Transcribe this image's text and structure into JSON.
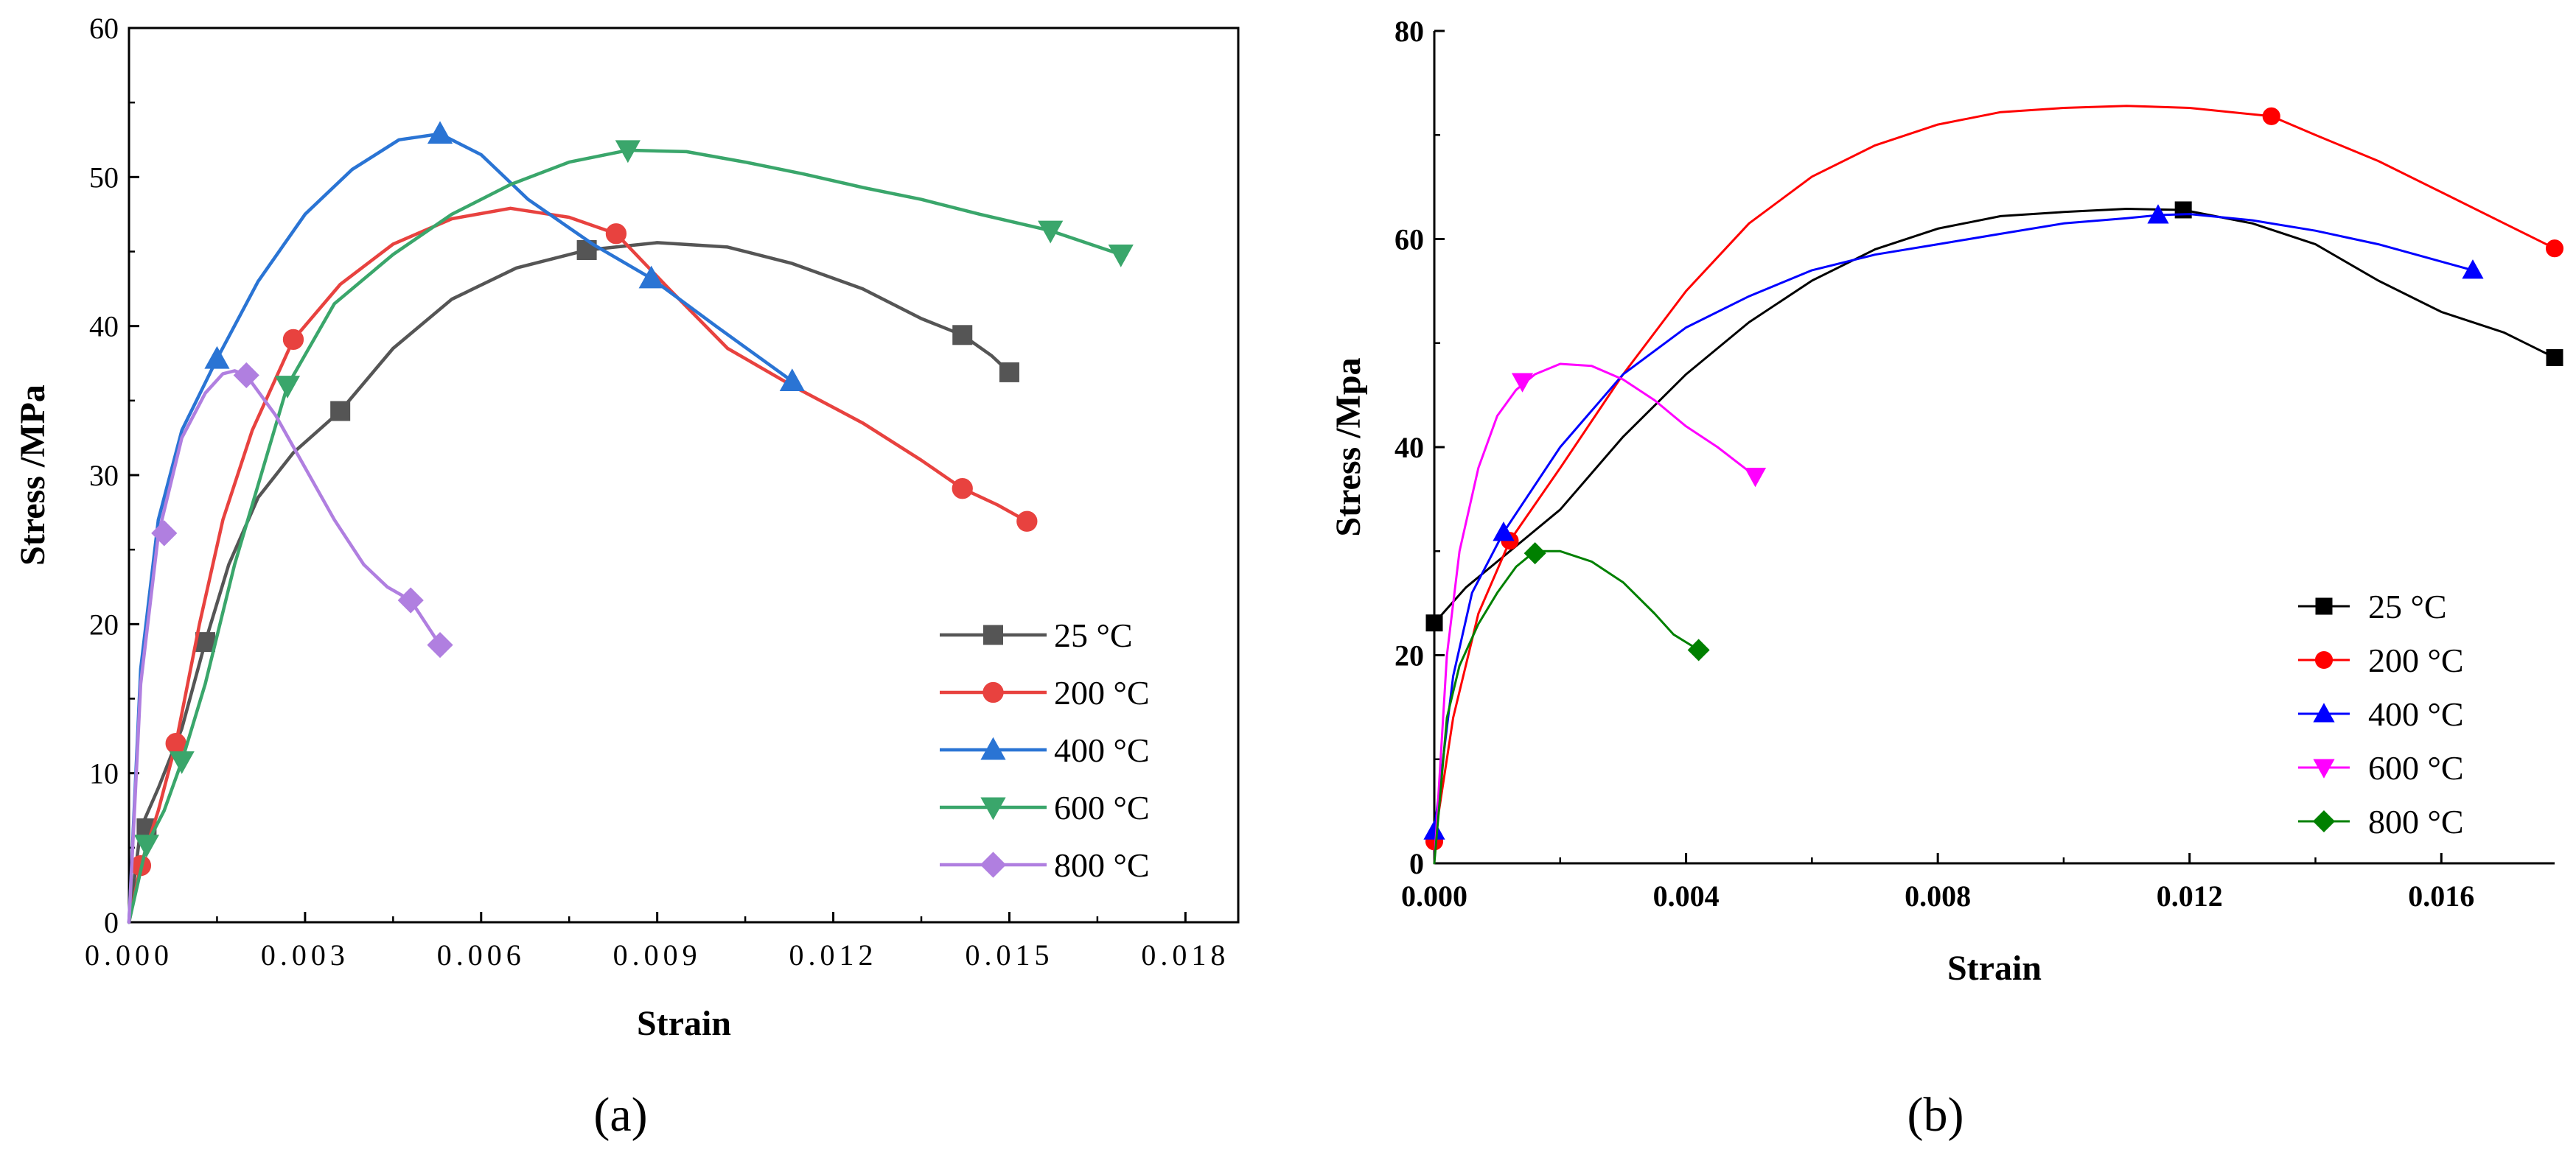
{
  "chart_data": [
    {
      "type": "line",
      "caption": "(a)",
      "xlabel": "Strain",
      "ylabel": "Stress /MPa",
      "xlim": [
        0,
        0.0189
      ],
      "ylim": [
        0,
        60
      ],
      "xticks": [
        0,
        0.003,
        0.006,
        0.009,
        0.012,
        0.015,
        0.018
      ],
      "xtick_labels": [
        "0.000",
        "0.003",
        "0.006",
        "0.009",
        "0.012",
        "0.015",
        "0.018"
      ],
      "yticks": [
        0,
        10,
        20,
        30,
        40,
        50,
        60
      ],
      "ytick_labels": [
        "0",
        "10",
        "20",
        "30",
        "40",
        "50",
        "60"
      ],
      "legend_position": "lower-right",
      "series": [
        {
          "name": " 25 °C",
          "color": "#555555",
          "marker": "square",
          "x": [
            0,
            0.0002,
            0.0005,
            0.0009,
            0.0013,
            0.0017,
            0.0022,
            0.0028,
            0.0036,
            0.0045,
            0.0055,
            0.0066,
            0.0078,
            0.009,
            0.0102,
            0.0113,
            0.0125,
            0.0135,
            0.0142,
            0.0147,
            0.015
          ],
          "y": [
            0,
            6.3,
            9,
            13,
            18.8,
            24,
            28.5,
            31.5,
            34.3,
            38.5,
            41.8,
            43.9,
            45.1,
            45.6,
            45.3,
            44.2,
            42.5,
            40.5,
            39.4,
            38,
            36.9
          ],
          "markers": [
            [
              0.0003,
              6.3
            ],
            [
              0.0013,
              18.8
            ],
            [
              0.0036,
              34.3
            ],
            [
              0.0078,
              45.1
            ],
            [
              0.0142,
              39.4
            ],
            [
              0.015,
              36.9
            ]
          ]
        },
        {
          "name": "200 °C",
          "color": "#e8423f",
          "marker": "circle",
          "x": [
            0,
            0.0002,
            0.0005,
            0.0008,
            0.0012,
            0.0016,
            0.0021,
            0.0028,
            0.0036,
            0.0045,
            0.0055,
            0.0065,
            0.0075,
            0.0083,
            0.0092,
            0.0102,
            0.0113,
            0.0125,
            0.0135,
            0.0142,
            0.0148,
            0.0153
          ],
          "y": [
            0,
            3.8,
            7.5,
            12,
            20,
            27,
            33,
            39.1,
            42.8,
            45.5,
            47.2,
            47.9,
            47.3,
            46.2,
            42.5,
            38.5,
            36,
            33.5,
            31,
            29.1,
            28,
            26.9
          ],
          "markers": [
            [
              0.0002,
              3.8
            ],
            [
              0.0008,
              12
            ],
            [
              0.0028,
              39.1
            ],
            [
              0.0083,
              46.2
            ],
            [
              0.0142,
              29.1
            ],
            [
              0.0153,
              26.9
            ]
          ]
        },
        {
          "name": "400 °C",
          "color": "#2a74d4",
          "marker": "triangle-up",
          "x": [
            0,
            0.0002,
            0.0005,
            0.0009,
            0.0015,
            0.0022,
            0.003,
            0.0038,
            0.0046,
            0.0053,
            0.006,
            0.0068,
            0.0079,
            0.0089,
            0.01,
            0.0113
          ],
          "y": [
            0,
            17,
            27,
            33,
            37.8,
            43,
            47.5,
            50.5,
            52.5,
            52.9,
            51.5,
            48.5,
            45.5,
            43.2,
            40,
            36.3
          ],
          "markers": [
            [
              0.0015,
              37.8
            ],
            [
              0.0053,
              52.9
            ],
            [
              0.0089,
              43.2
            ],
            [
              0.0113,
              36.3
            ]
          ]
        },
        {
          "name": "600 °C",
          "color": "#3aa66b",
          "marker": "triangle-down",
          "x": [
            0,
            0.0003,
            0.0006,
            0.0009,
            0.0013,
            0.0018,
            0.0027,
            0.0035,
            0.0045,
            0.0055,
            0.0065,
            0.0075,
            0.0085,
            0.0095,
            0.0105,
            0.0115,
            0.0125,
            0.0135,
            0.0145,
            0.0157,
            0.0169
          ],
          "y": [
            0,
            5.2,
            7.5,
            10.8,
            16,
            24,
            36,
            41.5,
            44.8,
            47.5,
            49.5,
            51,
            51.8,
            51.7,
            51,
            50.2,
            49.3,
            48.5,
            47.5,
            46.4,
            44.8
          ],
          "markers": [
            [
              0.0003,
              5.2
            ],
            [
              0.0009,
              10.8
            ],
            [
              0.0027,
              36
            ],
            [
              0.0085,
              51.8
            ],
            [
              0.0157,
              46.4
            ],
            [
              0.0169,
              44.8
            ]
          ]
        },
        {
          "name": "800 °C",
          "color": "#b07fe0",
          "marker": "diamond",
          "x": [
            0,
            0.0002,
            0.0005,
            0.0009,
            0.0013,
            0.0016,
            0.0018,
            0.002,
            0.0025,
            0.003,
            0.0035,
            0.004,
            0.0044,
            0.0048,
            0.0053
          ],
          "y": [
            0,
            16,
            26,
            32.5,
            35.5,
            36.8,
            37,
            36.7,
            34,
            30.5,
            27,
            24,
            22.5,
            21.6,
            18.6
          ],
          "markers": [
            [
              0.0006,
              26.1
            ],
            [
              0.002,
              36.7
            ],
            [
              0.0048,
              21.6
            ],
            [
              0.0053,
              18.6
            ]
          ]
        }
      ]
    },
    {
      "type": "line",
      "caption": "(b)",
      "xlabel": "Strain",
      "ylabel": "Stress /Mpa",
      "xlim": [
        0,
        0.0178
      ],
      "ylim": [
        0,
        80
      ],
      "xticks": [
        0,
        0.004,
        0.008,
        0.012,
        0.016
      ],
      "xtick_labels": [
        "0.000",
        "0.004",
        "0.008",
        "0.012",
        "0.016"
      ],
      "yticks": [
        0,
        20,
        40,
        60,
        80
      ],
      "ytick_labels": [
        "0",
        "20",
        "40",
        "60",
        "80"
      ],
      "legend_position": "lower-right",
      "series": [
        {
          "name": " 25 °C",
          "color": "#000000",
          "marker": "square",
          "x": [
            0,
            0.0005,
            0.001,
            0.0015,
            0.002,
            0.003,
            0.004,
            0.005,
            0.006,
            0.007,
            0.008,
            0.009,
            0.01,
            0.011,
            0.0119,
            0.013,
            0.014,
            0.015,
            0.016,
            0.017,
            0.0178
          ],
          "y": [
            23.1,
            26.5,
            29,
            31.5,
            34,
            41,
            47,
            52,
            56,
            59,
            61,
            62.2,
            62.6,
            62.9,
            62.8,
            61.5,
            59.5,
            56,
            53,
            51,
            48.6
          ],
          "markers": [
            [
              0,
              23.1
            ],
            [
              0.0119,
              62.8
            ],
            [
              0.0178,
              48.6
            ]
          ]
        },
        {
          "name": "200 °C",
          "color": "#ff0000",
          "marker": "circle",
          "x": [
            0,
            0.0003,
            0.0007,
            0.0012,
            0.002,
            0.003,
            0.004,
            0.005,
            0.006,
            0.007,
            0.008,
            0.009,
            0.01,
            0.011,
            0.012,
            0.0133,
            0.014,
            0.015,
            0.016,
            0.017,
            0.0178
          ],
          "y": [
            2.1,
            14,
            24,
            31,
            38,
            47,
            55,
            61.5,
            66,
            69,
            71,
            72.2,
            72.6,
            72.8,
            72.6,
            71.8,
            70,
            67.5,
            64.5,
            61.5,
            59.1
          ],
          "markers": [
            [
              0,
              2.1
            ],
            [
              0.0012,
              31
            ],
            [
              0.0133,
              71.8
            ],
            [
              0.0178,
              59.1
            ]
          ]
        },
        {
          "name": "400 °C",
          "color": "#0000ff",
          "marker": "triangle-up",
          "x": [
            0,
            0.0003,
            0.0006,
            0.0011,
            0.002,
            0.003,
            0.004,
            0.005,
            0.006,
            0.007,
            0.008,
            0.009,
            0.01,
            0.011,
            0.0115,
            0.012,
            0.013,
            0.014,
            0.015,
            0.0165
          ],
          "y": [
            3.1,
            18,
            26,
            31.8,
            40,
            47,
            51.5,
            54.5,
            57,
            58.5,
            59.5,
            60.5,
            61.5,
            62,
            62.3,
            62.4,
            61.8,
            60.8,
            59.5,
            57
          ],
          "markers": [
            [
              0,
              3.1
            ],
            [
              0.0011,
              31.8
            ],
            [
              0.0115,
              62.3
            ],
            [
              0.0165,
              57
            ]
          ]
        },
        {
          "name": "600 °C",
          "color": "#ff00ff",
          "marker": "triangle-down",
          "x": [
            0,
            0.0002,
            0.0004,
            0.0007,
            0.001,
            0.0013,
            0.0016,
            0.002,
            0.0025,
            0.003,
            0.0035,
            0.004,
            0.0045,
            0.0051
          ],
          "y": [
            0,
            20,
            30,
            38,
            43,
            45.5,
            47,
            48,
            47.8,
            46.5,
            44.5,
            42,
            40,
            37.2
          ],
          "markers": [
            [
              0.0014,
              46.3
            ],
            [
              0.0051,
              37.2
            ]
          ]
        },
        {
          "name": "800 °C",
          "color": "#008000",
          "marker": "diamond",
          "x": [
            0,
            0.0002,
            0.0004,
            0.0007,
            0.001,
            0.0013,
            0.0016,
            0.002,
            0.0025,
            0.003,
            0.0035,
            0.0038,
            0.0042
          ],
          "y": [
            0,
            14,
            19,
            23,
            26,
            28.5,
            30,
            30,
            29,
            27,
            24,
            22,
            20.5
          ],
          "markers": [
            [
              0.0016,
              29.8
            ],
            [
              0.0042,
              20.5
            ]
          ]
        }
      ]
    }
  ]
}
